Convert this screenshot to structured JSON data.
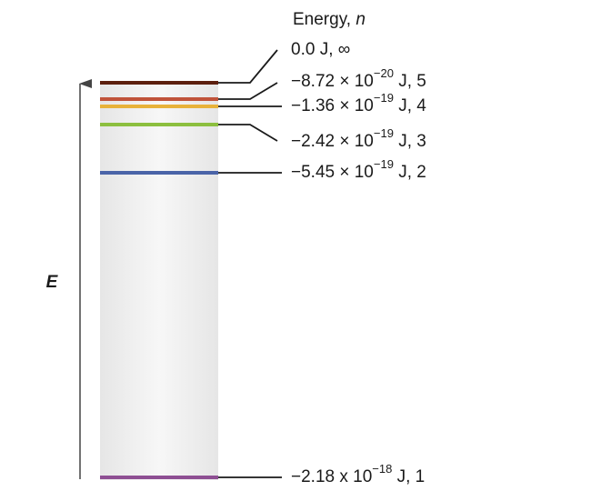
{
  "header": {
    "title": "Energy, ",
    "variable": "n"
  },
  "axis_label": "E",
  "levels": [
    {
      "text": "0.0 J, ∞"
    },
    {
      "base": "−8.72 × 10",
      "exponent": "−20",
      "rest": " J, 5"
    },
    {
      "base": "−1.36 × 10",
      "exponent": "−19",
      "rest": " J, 4"
    },
    {
      "base": "−2.42 × 10",
      "exponent": "−19",
      "rest": " J, 3"
    },
    {
      "base": "−5.45 × 10",
      "exponent": "−19",
      "rest": " J, 2"
    },
    {
      "base": "−2.18 x 10",
      "exponent": "−18",
      "rest": " J, 1"
    }
  ]
}
